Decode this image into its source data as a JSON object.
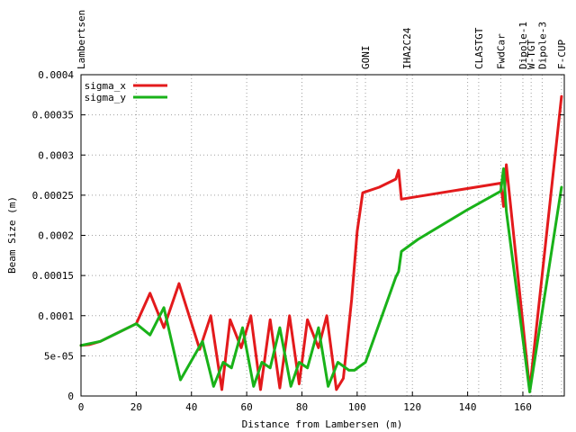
{
  "chart_data": {
    "type": "line",
    "xlabel": "Distance from Lambersen (m)",
    "ylabel": "Beam Size (m)",
    "xlim": [
      0,
      175
    ],
    "ylim": [
      0,
      0.0004
    ],
    "grid": true,
    "legend_position": "top-left",
    "x_ticks": [
      {
        "value": 0,
        "label": "0"
      },
      {
        "value": 20,
        "label": "20"
      },
      {
        "value": 40,
        "label": "40"
      },
      {
        "value": 60,
        "label": "60"
      },
      {
        "value": 80,
        "label": "80"
      },
      {
        "value": 100,
        "label": "100"
      },
      {
        "value": 120,
        "label": "120"
      },
      {
        "value": 140,
        "label": "140"
      },
      {
        "value": 160,
        "label": "160"
      }
    ],
    "y_ticks": [
      {
        "value": 0,
        "label": "0"
      },
      {
        "value": 5e-05,
        "label": "5e-05"
      },
      {
        "value": 0.0001,
        "label": "0.0001"
      },
      {
        "value": 0.00015,
        "label": "0.00015"
      },
      {
        "value": 0.0002,
        "label": "0.0002"
      },
      {
        "value": 0.00025,
        "label": "0.00025"
      },
      {
        "value": 0.0003,
        "label": "0.0003"
      },
      {
        "value": 0.00035,
        "label": "0.00035"
      },
      {
        "value": 0.0004,
        "label": "0.0004"
      }
    ],
    "markers": [
      {
        "name": "Lambertsen",
        "x": 0
      },
      {
        "name": "GONI",
        "x": 103
      },
      {
        "name": "IHA2C24",
        "x": 118
      },
      {
        "name": "CLASTGT",
        "x": 144
      },
      {
        "name": "FwdCar",
        "x": 152
      },
      {
        "name": "Dipole-1",
        "x": 160
      },
      {
        "name": "W-TGT",
        "x": 163
      },
      {
        "name": "Dipole-3",
        "x": 167
      },
      {
        "name": "F-CUP",
        "x": 174
      }
    ],
    "series": [
      {
        "name": "sigma_x",
        "color": "#e31a1c",
        "points": [
          [
            0,
            6.3e-05
          ],
          [
            3,
            6.4e-05
          ],
          [
            7,
            6.8e-05
          ],
          [
            20,
            9e-05
          ],
          [
            25,
            0.000128
          ],
          [
            30,
            8.5e-05
          ],
          [
            35.5,
            0.00014
          ],
          [
            43,
            5.8e-05
          ],
          [
            47,
            0.0001
          ],
          [
            51,
            8e-06
          ],
          [
            54,
            9.5e-05
          ],
          [
            58,
            6e-05
          ],
          [
            61.5,
            0.0001
          ],
          [
            65,
            8e-06
          ],
          [
            68.5,
            9.5e-05
          ],
          [
            72,
            1e-05
          ],
          [
            75.5,
            0.0001
          ],
          [
            79,
            1.5e-05
          ],
          [
            82,
            9.5e-05
          ],
          [
            86,
            6e-05
          ],
          [
            89,
            0.0001
          ],
          [
            92.5,
            8e-06
          ],
          [
            95,
            2.2e-05
          ],
          [
            98,
            0.00012
          ],
          [
            100,
            0.000205
          ],
          [
            102,
            0.000253
          ],
          [
            108,
            0.00026
          ],
          [
            114,
            0.00027
          ],
          [
            115,
            0.000281
          ],
          [
            116,
            0.000245
          ],
          [
            152,
            0.000265
          ],
          [
            153,
            0.000236
          ],
          [
            154,
            0.000288
          ],
          [
            162.5,
            8e-06
          ],
          [
            174,
            0.000373
          ]
        ]
      },
      {
        "name": "sigma_y",
        "color": "#19b219",
        "points": [
          [
            0,
            6.3e-05
          ],
          [
            7,
            6.8e-05
          ],
          [
            20,
            9e-05
          ],
          [
            25,
            7.6e-05
          ],
          [
            30,
            0.00011
          ],
          [
            36,
            2e-05
          ],
          [
            44,
            6.8e-05
          ],
          [
            48,
            1.2e-05
          ],
          [
            51.5,
            4.2e-05
          ],
          [
            54.5,
            3.5e-05
          ],
          [
            58.5,
            8.5e-05
          ],
          [
            62.5,
            1.2e-05
          ],
          [
            65.5,
            4.2e-05
          ],
          [
            68.5,
            3.5e-05
          ],
          [
            72,
            8.5e-05
          ],
          [
            76,
            1.2e-05
          ],
          [
            79,
            4.2e-05
          ],
          [
            82,
            3.5e-05
          ],
          [
            86,
            8.5e-05
          ],
          [
            89.5,
            1.2e-05
          ],
          [
            93,
            4.2e-05
          ],
          [
            97,
            3.2e-05
          ],
          [
            99,
            3.2e-05
          ],
          [
            103,
            4.2e-05
          ],
          [
            114,
            0.000148
          ],
          [
            115,
            0.000155
          ],
          [
            116,
            0.00018
          ],
          [
            122,
            0.000195
          ],
          [
            140,
            0.000232
          ],
          [
            152,
            0.000255
          ],
          [
            153,
            0.000283
          ],
          [
            154,
            0.00023
          ],
          [
            162.5,
            5e-06
          ],
          [
            174,
            0.00026
          ]
        ]
      }
    ]
  }
}
